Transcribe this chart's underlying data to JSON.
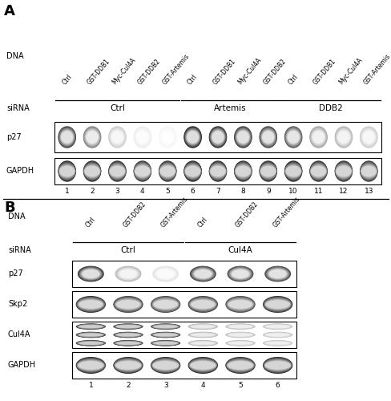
{
  "panel_A_label": "A",
  "panel_B_label": "B",
  "panel_A": {
    "dna_labels": [
      "Ctrl",
      "GST-DDB1",
      "Myc-Cul4A",
      "GST-DDB2",
      "GST-Artemis",
      "Ctrl",
      "GST-DDB1",
      "Myc-Cul4A",
      "GST-DDB2",
      "Ctrl",
      "GST-DDB1",
      "Myc-Cul4A",
      "GST-Artemis"
    ],
    "sirna_groups": [
      {
        "label": "Ctrl",
        "lanes": [
          1,
          2,
          3,
          4,
          5
        ]
      },
      {
        "label": "Artemis",
        "lanes": [
          6,
          7,
          8,
          9
        ]
      },
      {
        "label": "DDB2",
        "lanes": [
          10,
          11,
          12,
          13
        ]
      }
    ],
    "lane_numbers": [
      1,
      2,
      3,
      4,
      5,
      6,
      7,
      8,
      9,
      10,
      11,
      12,
      13
    ],
    "row_labels": [
      "p27",
      "GAPDH"
    ],
    "p27_intensities": [
      0.82,
      0.55,
      0.22,
      0.08,
      0.04,
      0.95,
      0.9,
      0.85,
      0.8,
      0.72,
      0.4,
      0.32,
      0.22
    ],
    "gapdh_intensities": [
      0.92,
      0.9,
      0.88,
      0.85,
      0.87,
      0.92,
      0.9,
      0.88,
      0.9,
      0.92,
      0.88,
      0.87,
      0.85
    ]
  },
  "panel_B": {
    "dna_labels": [
      "Ctrl",
      "GST-DDB2",
      "GST-Artemis",
      "Ctrl",
      "GST-DDB2",
      "GST-Artemis"
    ],
    "sirna_groups": [
      {
        "label": "Ctrl",
        "lanes": [
          1,
          2,
          3
        ]
      },
      {
        "label": "Cul4A",
        "lanes": [
          4,
          5,
          6
        ]
      }
    ],
    "lane_numbers": [
      1,
      2,
      3,
      4,
      5,
      6
    ],
    "row_labels": [
      "p27",
      "Skp2",
      "Cul4A",
      "GAPDH"
    ],
    "p27_intensities": [
      0.88,
      0.3,
      0.12,
      0.82,
      0.78,
      0.8
    ],
    "skp2_intensities": [
      0.88,
      0.82,
      0.78,
      0.82,
      0.78,
      0.88
    ],
    "cul4a_intensities": [
      0.9,
      0.88,
      0.85,
      0.35,
      0.3,
      0.28
    ],
    "gapdh_intensities": [
      0.9,
      0.88,
      0.87,
      0.9,
      0.88,
      0.9
    ]
  }
}
